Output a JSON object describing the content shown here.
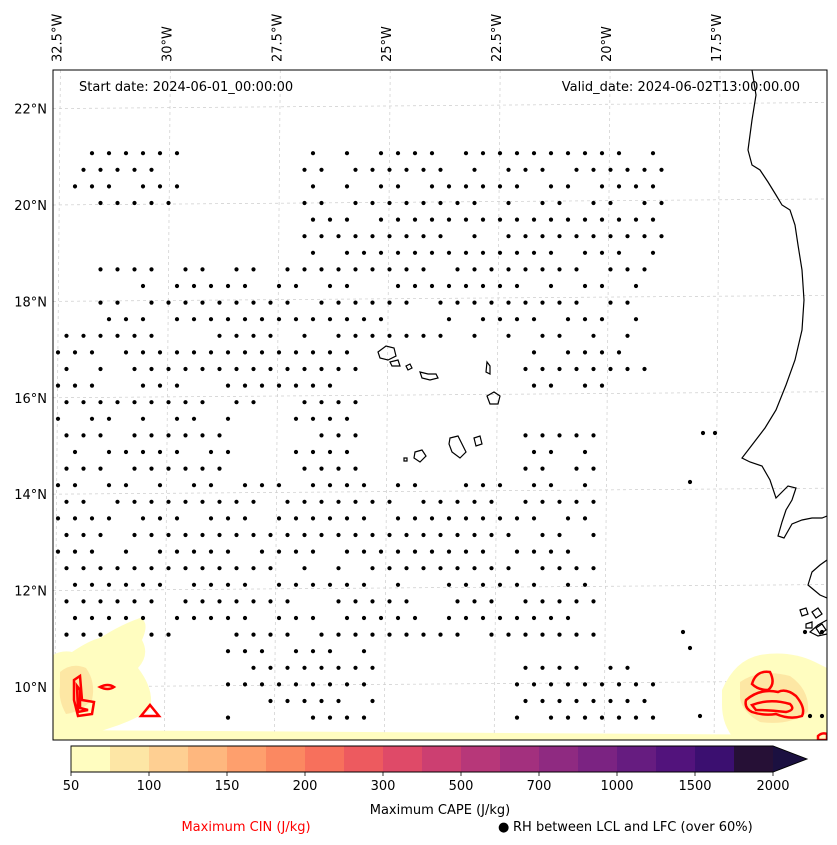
{
  "map": {
    "lon_ticks": [
      {
        "label": "32.5°W",
        "lon": -32.5
      },
      {
        "label": "30°W",
        "lon": -30
      },
      {
        "label": "27.5°W",
        "lon": -27.5
      },
      {
        "label": "25°W",
        "lon": -25
      },
      {
        "label": "22.5°W",
        "lon": -22.5
      },
      {
        "label": "20°W",
        "lon": -20
      },
      {
        "label": "17.5°W",
        "lon": -17.5
      }
    ],
    "lat_ticks": [
      {
        "label": "22°N",
        "lat": 22
      },
      {
        "label": "20°N",
        "lat": 20
      },
      {
        "label": "18°N",
        "lat": 18
      },
      {
        "label": "16°N",
        "lat": 16
      },
      {
        "label": "14°N",
        "lat": 14
      },
      {
        "label": "12°N",
        "lat": 12
      },
      {
        "label": "10°N",
        "lat": 10
      }
    ],
    "extent": {
      "lon_min": -32.6,
      "lon_max": -15.0,
      "lat_min": 8.9,
      "lat_max": 22.8
    },
    "start_date": "Start date: 2024-06-01_00:00:00",
    "valid_date": "Valid_date: 2024-06-02T13:00:00.00",
    "colors": {
      "grid": "#cccccc",
      "coast": "#000000",
      "cin": "#ff0000",
      "dots": "#000000",
      "cape_low": "#fffdc0",
      "cape_mid": "#fde7a4"
    }
  },
  "colorbar": {
    "title": "Maximum CAPE (J/kg)",
    "colormap": "magma_r",
    "levels": [
      50,
      75,
      100,
      125,
      150,
      175,
      200,
      250,
      300,
      400,
      500,
      600,
      700,
      800,
      1000,
      1250,
      1500,
      1750,
      2000
    ],
    "tick_labels": [
      "50",
      "100",
      "150",
      "200",
      "300",
      "500",
      "700",
      "1000",
      "1500",
      "2000"
    ],
    "colors": [
      "#fffdc0",
      "#fde6a5",
      "#fecf92",
      "#feb77e",
      "#fe9f6d",
      "#fb8861",
      "#f7705c",
      "#ed5a5f",
      "#df4a68",
      "#cc3f71",
      "#b73779",
      "#a3307e",
      "#8f2a81",
      "#7b2382",
      "#661c80",
      "#52137c",
      "#3b0f70",
      "#261036",
      "#1b1040"
    ],
    "extend": "max"
  },
  "legend": {
    "cin_label": "Maximum CIN (J/kg)",
    "rh_label": "RH between LCL and LFC (over 60%)",
    "rh_marker": "●"
  }
}
